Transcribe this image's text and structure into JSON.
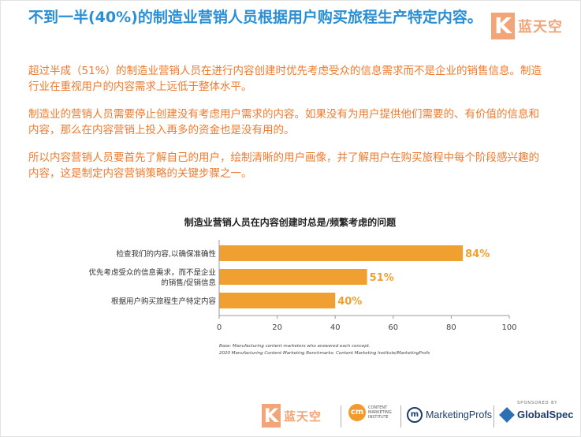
{
  "header": {
    "title": "不到一半(40%)的制造业营销人员根据用户购买旅程生产特定内容。",
    "logo_text": "蓝天空",
    "logo_letter": "K"
  },
  "paragraphs": [
    "超过半成（51%）的制造业营销人员在进行内容创建时优先考虑受众的信息需求而不是企业的销售信息。制造行业在重视用户的内容需求上远低于整体水平。",
    "制造业的营销人员需要停止创建没有考虑用户需求的内容。如果没有为用户提供他们需要的、有价值的信息和内容，那么在内容营销上投入再多的资金也是没有用的。",
    "所以内容营销人员要首先了解自己的用户，绘制清晰的用户画像，并了解用户在购买旅程中每个阶段感兴趣的内容，这是制定内容营销策略的关键步骤之一。"
  ],
  "chart_data": {
    "type": "bar",
    "orientation": "horizontal",
    "title": "制造业营销人员在内容创建时总是/频繁考虑的问题",
    "categories": [
      "检查我们的内容,以确保准确性",
      "优先考虑受众的信息需求，而不是企业的销售/促销信息",
      "根据用户购买旅程生产特定内容"
    ],
    "category_lines": [
      [
        "检查我们的内容,以确保准确性"
      ],
      [
        "优先考虑受众的信息需求，而不是企业",
        "的销售/促销信息"
      ],
      [
        "根据用户购买旅程生产特定内容"
      ]
    ],
    "values": [
      84,
      51,
      40
    ],
    "value_labels": [
      "84%",
      "51%",
      "40%"
    ],
    "xlim": [
      0,
      100
    ],
    "xticks": [
      0,
      20,
      40,
      60,
      80,
      100
    ],
    "xtick_labels": [
      "0",
      "20",
      "40",
      "60",
      "80",
      "100"
    ],
    "bar_color": "#f0a030",
    "label_color": "#f0a030",
    "grid": false,
    "notes": [
      "Base: Manufacturing content marketers who answered each concept.",
      "2020 Manufacturing Content Marketing Benchmarks: Content Marketing Institute/MarketingProfs"
    ]
  },
  "footer": {
    "logo_text": "蓝天空",
    "logo_letter": "K",
    "cmi_initials": "cm",
    "cmi_text": "CONTENT MARKETING INSTITUTE",
    "marketingprofs_text": "MarketingProfs",
    "marketingprofs_initial": "m",
    "sponsored_text": "SPONSORED BY",
    "globalspec_text": "GlobalSpec"
  },
  "colors": {
    "title": "#2a8fd4",
    "body_text": "#ef7a2c",
    "bar": "#f0a030",
    "logo": "#f3a57a"
  }
}
